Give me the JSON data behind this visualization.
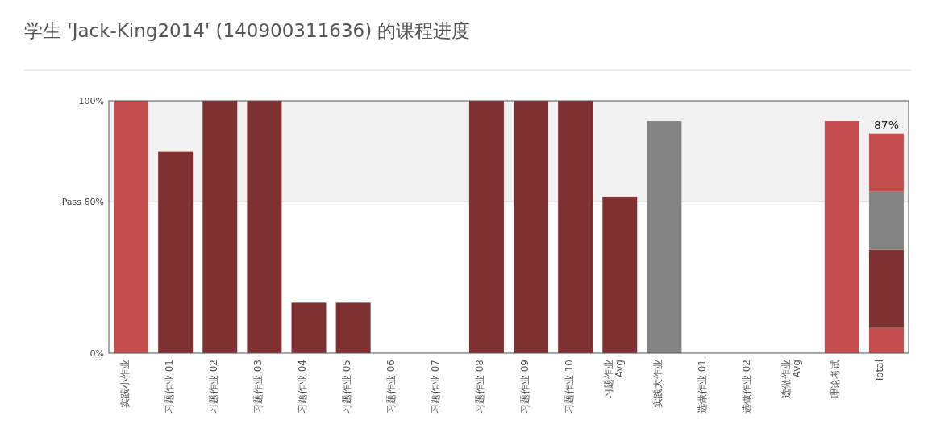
{
  "chart_data": {
    "type": "bar",
    "title": "学生 'Jack-King2014' (140900311636) 的课程进度",
    "categories": [
      "实践小作业",
      "习题作业 01",
      "习题作业 02",
      "习题作业 03",
      "习题作业 04",
      "习题作业 05",
      "习题作业 06",
      "习题作业 07",
      "习题作业 08",
      "习题作业 09",
      "习题作业 10",
      "习题作业\nAvg",
      "实践大作业",
      "选做作业 01",
      "选做作业 02",
      "选做作业\nAvg",
      "理论考试",
      "Total"
    ],
    "stacked": true,
    "series": [
      {
        "color": "#c44d4e",
        "values": [
          100,
          null,
          null,
          null,
          null,
          null,
          null,
          null,
          null,
          null,
          null,
          null,
          null,
          null,
          null,
          null,
          92,
          10
        ]
      },
      {
        "color": "#7f3132",
        "values": [
          null,
          80,
          100,
          100,
          20,
          20,
          0,
          0,
          100,
          100,
          100,
          62,
          null,
          0,
          0,
          0,
          null,
          31
        ]
      },
      {
        "color": "#838383",
        "values": [
          null,
          null,
          null,
          null,
          null,
          null,
          null,
          null,
          null,
          null,
          null,
          null,
          92,
          null,
          null,
          null,
          null,
          23
        ]
      },
      {
        "color": "#c44d4e",
        "values": [
          null,
          null,
          null,
          null,
          null,
          null,
          null,
          null,
          null,
          null,
          null,
          null,
          null,
          null,
          null,
          null,
          null,
          23
        ]
      }
    ],
    "ylim": [
      0,
      100
    ],
    "yticks": [
      {
        "value": 0,
        "label": "0%"
      },
      {
        "value": 60,
        "label": "Pass 60%"
      },
      {
        "value": 100,
        "label": "100%"
      }
    ],
    "bands": [
      {
        "axis": "y",
        "from": 60,
        "to": 100,
        "color": "#f2f2f2"
      }
    ],
    "totals": [
      null,
      null,
      null,
      null,
      null,
      null,
      null,
      null,
      null,
      null,
      null,
      null,
      null,
      null,
      null,
      null,
      null,
      "87%"
    ]
  }
}
